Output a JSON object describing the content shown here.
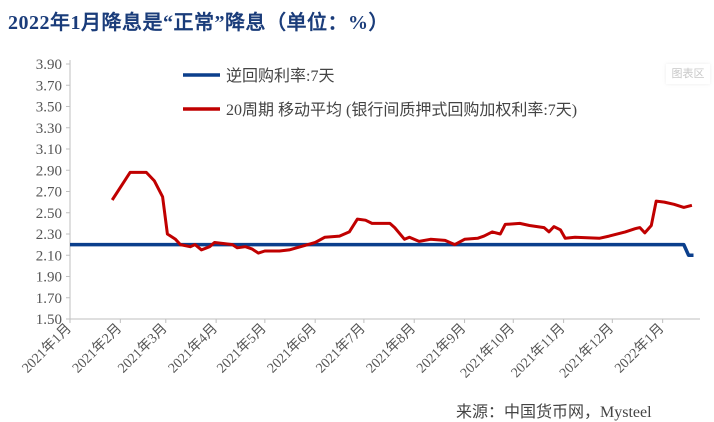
{
  "title": "2022年1月降息是“正常”降息（单位：%）",
  "watermark": "图表区",
  "source": "来源：中国货币网，Mysteel",
  "chart_data": {
    "type": "line",
    "title": "2022年1月降息是“正常”降息（单位：%）",
    "xlabel": "",
    "ylabel": "",
    "ylim": [
      1.5,
      3.9
    ],
    "xlim": [
      "2021-01-01",
      "2022-01-24"
    ],
    "yticks": [
      "1.50",
      "1.70",
      "1.90",
      "2.10",
      "2.30",
      "2.50",
      "2.70",
      "2.90",
      "3.10",
      "3.30",
      "3.50",
      "3.70",
      "3.90"
    ],
    "xticks": [
      {
        "date": "2021-01-01",
        "label": "2021年1月"
      },
      {
        "date": "2021-02-01",
        "label": "2021年2月"
      },
      {
        "date": "2021-03-01",
        "label": "2021年3月"
      },
      {
        "date": "2021-04-01",
        "label": "2021年4月"
      },
      {
        "date": "2021-05-01",
        "label": "2021年5月"
      },
      {
        "date": "2021-06-01",
        "label": "2021年6月"
      },
      {
        "date": "2021-07-01",
        "label": "2021年7月"
      },
      {
        "date": "2021-08-01",
        "label": "2021年8月"
      },
      {
        "date": "2021-09-01",
        "label": "2021年9月"
      },
      {
        "date": "2021-10-01",
        "label": "2021年10月"
      },
      {
        "date": "2021-11-01",
        "label": "2021年11月"
      },
      {
        "date": "2021-12-01",
        "label": "2021年12月"
      },
      {
        "date": "2022-01-01",
        "label": "2022年1月"
      }
    ],
    "grid": false,
    "legend_position": "top",
    "series": [
      {
        "name": "逆回购利率:7天",
        "color": "#0b3f8c",
        "x": [
          "2021-01-01",
          "2022-01-14",
          "2022-01-17",
          "2022-01-20"
        ],
        "y": [
          2.2,
          2.2,
          2.1,
          2.1
        ]
      },
      {
        "name": "20周期 移动平均 (银行间质押式回购加权利率:7天)",
        "color": "#c00000",
        "x": [
          "2021-01-27",
          "2021-02-07",
          "2021-02-17",
          "2021-02-22",
          "2021-02-27",
          "2021-03-02",
          "2021-03-07",
          "2021-03-10",
          "2021-03-16",
          "2021-03-19",
          "2021-03-23",
          "2021-03-28",
          "2021-03-31",
          "2021-04-06",
          "2021-04-11",
          "2021-04-14",
          "2021-04-19",
          "2021-04-23",
          "2021-04-27",
          "2021-05-01",
          "2021-05-10",
          "2021-05-16",
          "2021-05-23",
          "2021-06-01",
          "2021-06-07",
          "2021-06-16",
          "2021-06-22",
          "2021-06-27",
          "2021-07-02",
          "2021-07-06",
          "2021-07-17",
          "2021-07-20",
          "2021-07-26",
          "2021-07-29",
          "2021-08-04",
          "2021-08-11",
          "2021-08-20",
          "2021-08-23",
          "2021-08-26",
          "2021-09-01",
          "2021-09-09",
          "2021-09-13",
          "2021-09-18",
          "2021-09-23",
          "2021-09-26",
          "2021-10-05",
          "2021-10-11",
          "2021-10-20",
          "2021-10-23",
          "2021-10-26",
          "2021-10-30",
          "2021-11-02",
          "2021-11-08",
          "2021-11-23",
          "2021-11-29",
          "2021-12-09",
          "2021-12-15",
          "2021-12-18",
          "2021-12-21",
          "2021-12-25",
          "2021-12-28",
          "2022-01-02",
          "2022-01-08",
          "2022-01-14",
          "2022-01-19"
        ],
        "y": [
          2.62,
          2.88,
          2.88,
          2.8,
          2.65,
          2.3,
          2.25,
          2.2,
          2.18,
          2.2,
          2.15,
          2.18,
          2.22,
          2.21,
          2.2,
          2.17,
          2.18,
          2.16,
          2.12,
          2.14,
          2.14,
          2.15,
          2.18,
          2.22,
          2.27,
          2.28,
          2.32,
          2.44,
          2.43,
          2.4,
          2.4,
          2.36,
          2.25,
          2.27,
          2.23,
          2.25,
          2.24,
          2.22,
          2.2,
          2.25,
          2.26,
          2.28,
          2.32,
          2.3,
          2.39,
          2.4,
          2.38,
          2.36,
          2.32,
          2.37,
          2.34,
          2.26,
          2.27,
          2.26,
          2.28,
          2.32,
          2.35,
          2.36,
          2.31,
          2.38,
          2.61,
          2.6,
          2.58,
          2.55,
          2.57
        ]
      }
    ]
  }
}
